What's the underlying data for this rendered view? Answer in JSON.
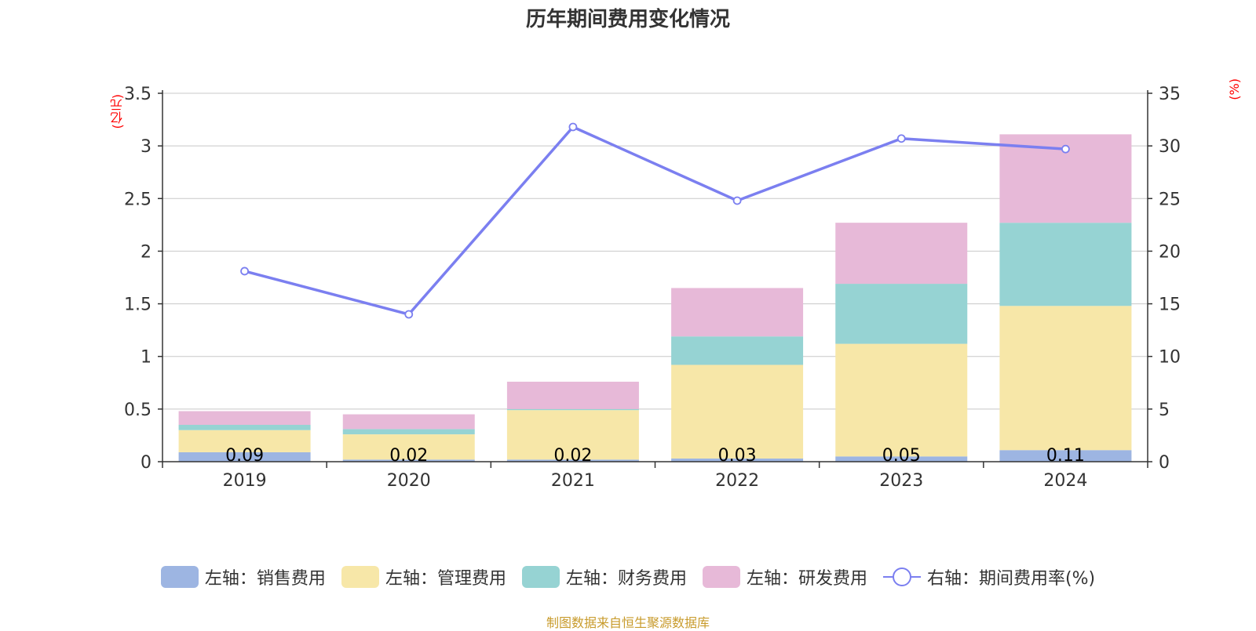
{
  "title": "历年期间费用变化情况",
  "left_unit": "(亿元)",
  "right_unit": "(%)",
  "source": "制图数据来自恒生聚源数据库",
  "colors": {
    "sales": "#9db5e2",
    "admin": "#f7e7a8",
    "finance": "#96d3d3",
    "rd": "#e7b9d8",
    "rate": "#7b7ff0",
    "grid": "#c8c8c8",
    "axis": "#333333",
    "label": "#000000"
  },
  "chart_data": {
    "type": "bar",
    "categories": [
      "2019",
      "2020",
      "2021",
      "2022",
      "2023",
      "2024"
    ],
    "left_axis": {
      "min": 0,
      "max": 3.5,
      "ticks": [
        "0",
        "0.5",
        "1",
        "1.5",
        "2",
        "2.5",
        "3",
        "3.5"
      ]
    },
    "right_axis": {
      "min": 0,
      "max": 35,
      "ticks": [
        "0",
        "5",
        "10",
        "15",
        "20",
        "25",
        "30",
        "35"
      ]
    },
    "grid": true,
    "legend_position": "bottom",
    "series": [
      {
        "name": "左轴：销售费用",
        "type": "bar",
        "stack": true,
        "values": [
          0.09,
          0.02,
          0.02,
          0.03,
          0.05,
          0.11
        ],
        "labels": [
          "0.09",
          "0.02",
          "0.02",
          "0.03",
          "0.05",
          "0.11"
        ]
      },
      {
        "name": "左轴：管理费用",
        "type": "bar",
        "stack": true,
        "values": [
          0.21,
          0.24,
          0.47,
          0.89,
          1.07,
          1.37
        ]
      },
      {
        "name": "左轴：财务费用",
        "type": "bar",
        "stack": true,
        "values": [
          0.05,
          0.05,
          0.01,
          0.27,
          0.57,
          0.79
        ]
      },
      {
        "name": "左轴：研发费用",
        "type": "bar",
        "stack": true,
        "values": [
          0.13,
          0.14,
          0.26,
          0.46,
          0.58,
          0.84
        ]
      },
      {
        "name": "右轴：期间费用率(%)",
        "type": "line",
        "axis": "right",
        "values": [
          18.1,
          14.0,
          31.8,
          24.8,
          30.7,
          29.7
        ]
      }
    ]
  }
}
